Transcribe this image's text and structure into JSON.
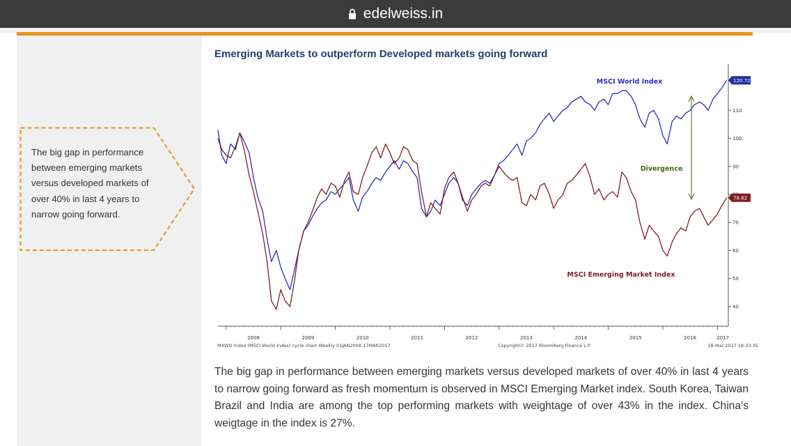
{
  "browser": {
    "url": "edelweiss.in"
  },
  "article": {
    "title": "Emerging Markets to outperform Developed markets going forward",
    "body": "The big gap in performance between emerging markets versus developed markets of over 40% in last 4 years to narrow going forward as fresh momentum is observed in MSCI Emerging Market index. South Korea, Taiwan Brazil and India are among the top performing markets with weightage of over 43% in the index. China’s weigtage in the index is 27%."
  },
  "callout": {
    "text": "The big gap in performance between emerging markets versus developed markets of over 40% in last 4 years to narrow going forward."
  },
  "colors": {
    "world": "#2b2fb8",
    "emerging": "#7c1f24",
    "divergence": "#3f6b12",
    "accent": "#e59518",
    "title": "#24406c"
  },
  "chart_data": {
    "type": "line",
    "title": "",
    "x_labels": [
      "2008",
      "2009",
      "2010",
      "2011",
      "2012",
      "2013",
      "2014",
      "2015",
      "2016",
      "2017"
    ],
    "y_ticks": [
      40,
      50,
      60,
      70,
      80,
      90,
      100,
      110
    ],
    "ylim": [
      33,
      125
    ],
    "xlim": [
      2007.85,
      2017.2
    ],
    "grid": false,
    "series": [
      {
        "name": "MSCI World Index",
        "last_value": "120.72",
        "points": [
          [
            2007.85,
            103
          ],
          [
            2007.92,
            94
          ],
          [
            2008.0,
            91
          ],
          [
            2008.08,
            98
          ],
          [
            2008.17,
            96
          ],
          [
            2008.25,
            102
          ],
          [
            2008.33,
            99
          ],
          [
            2008.42,
            95
          ],
          [
            2008.5,
            86
          ],
          [
            2008.58,
            79
          ],
          [
            2008.67,
            74
          ],
          [
            2008.75,
            64
          ],
          [
            2008.83,
            56
          ],
          [
            2008.92,
            60
          ],
          [
            2009.0,
            54
          ],
          [
            2009.08,
            50
          ],
          [
            2009.17,
            46
          ],
          [
            2009.25,
            53
          ],
          [
            2009.33,
            60
          ],
          [
            2009.42,
            67
          ],
          [
            2009.5,
            69
          ],
          [
            2009.58,
            72
          ],
          [
            2009.67,
            75
          ],
          [
            2009.75,
            77
          ],
          [
            2009.83,
            78
          ],
          [
            2009.92,
            81
          ],
          [
            2010.0,
            80
          ],
          [
            2010.08,
            82
          ],
          [
            2010.17,
            84
          ],
          [
            2010.25,
            86
          ],
          [
            2010.33,
            78
          ],
          [
            2010.42,
            74
          ],
          [
            2010.5,
            79
          ],
          [
            2010.58,
            81
          ],
          [
            2010.67,
            84
          ],
          [
            2010.75,
            86
          ],
          [
            2010.83,
            85
          ],
          [
            2010.92,
            88
          ],
          [
            2011.0,
            90
          ],
          [
            2011.08,
            92
          ],
          [
            2011.17,
            89
          ],
          [
            2011.25,
            92
          ],
          [
            2011.33,
            91
          ],
          [
            2011.42,
            88
          ],
          [
            2011.5,
            86
          ],
          [
            2011.58,
            75
          ],
          [
            2011.67,
            72
          ],
          [
            2011.75,
            74
          ],
          [
            2011.83,
            78
          ],
          [
            2011.92,
            76
          ],
          [
            2012.0,
            80
          ],
          [
            2012.08,
            84
          ],
          [
            2012.17,
            86
          ],
          [
            2012.25,
            84
          ],
          [
            2012.33,
            78
          ],
          [
            2012.42,
            76
          ],
          [
            2012.5,
            80
          ],
          [
            2012.58,
            82
          ],
          [
            2012.67,
            84
          ],
          [
            2012.75,
            85
          ],
          [
            2012.83,
            84
          ],
          [
            2012.92,
            87
          ],
          [
            2013.0,
            91
          ],
          [
            2013.08,
            92
          ],
          [
            2013.17,
            94
          ],
          [
            2013.25,
            96
          ],
          [
            2013.33,
            98
          ],
          [
            2013.42,
            94
          ],
          [
            2013.5,
            99
          ],
          [
            2013.58,
            100
          ],
          [
            2013.67,
            102
          ],
          [
            2013.75,
            105
          ],
          [
            2013.83,
            107
          ],
          [
            2013.92,
            109
          ],
          [
            2014.0,
            106
          ],
          [
            2014.08,
            108
          ],
          [
            2014.17,
            110
          ],
          [
            2014.25,
            111
          ],
          [
            2014.33,
            113
          ],
          [
            2014.42,
            114
          ],
          [
            2014.5,
            115
          ],
          [
            2014.58,
            113
          ],
          [
            2014.67,
            112
          ],
          [
            2014.75,
            110
          ],
          [
            2014.83,
            113
          ],
          [
            2014.92,
            114
          ],
          [
            2015.0,
            112
          ],
          [
            2015.08,
            116
          ],
          [
            2015.17,
            116
          ],
          [
            2015.25,
            117
          ],
          [
            2015.33,
            117
          ],
          [
            2015.42,
            115
          ],
          [
            2015.5,
            112
          ],
          [
            2015.58,
            107
          ],
          [
            2015.67,
            104
          ],
          [
            2015.75,
            109
          ],
          [
            2015.83,
            110
          ],
          [
            2015.92,
            107
          ],
          [
            2016.0,
            101
          ],
          [
            2016.08,
            98
          ],
          [
            2016.17,
            106
          ],
          [
            2016.25,
            108
          ],
          [
            2016.33,
            107
          ],
          [
            2016.42,
            109
          ],
          [
            2016.5,
            110
          ],
          [
            2016.58,
            112
          ],
          [
            2016.67,
            113
          ],
          [
            2016.75,
            112
          ],
          [
            2016.83,
            110
          ],
          [
            2016.92,
            114
          ],
          [
            2017.0,
            116
          ],
          [
            2017.08,
            118
          ],
          [
            2017.17,
            120.7
          ]
        ]
      },
      {
        "name": "MSCI Emerging Market Index",
        "last_value": "78.82",
        "points": [
          [
            2007.85,
            100
          ],
          [
            2007.92,
            96
          ],
          [
            2008.0,
            94
          ],
          [
            2008.08,
            93
          ],
          [
            2008.17,
            97
          ],
          [
            2008.25,
            102
          ],
          [
            2008.33,
            96
          ],
          [
            2008.42,
            87
          ],
          [
            2008.5,
            81
          ],
          [
            2008.58,
            74
          ],
          [
            2008.67,
            66
          ],
          [
            2008.75,
            56
          ],
          [
            2008.83,
            42
          ],
          [
            2008.92,
            39
          ],
          [
            2009.0,
            46
          ],
          [
            2009.08,
            42
          ],
          [
            2009.17,
            40
          ],
          [
            2009.25,
            49
          ],
          [
            2009.33,
            60
          ],
          [
            2009.42,
            67
          ],
          [
            2009.5,
            70
          ],
          [
            2009.58,
            74
          ],
          [
            2009.67,
            79
          ],
          [
            2009.75,
            82
          ],
          [
            2009.83,
            80
          ],
          [
            2009.92,
            84
          ],
          [
            2010.0,
            83
          ],
          [
            2010.08,
            79
          ],
          [
            2010.17,
            85
          ],
          [
            2010.25,
            88
          ],
          [
            2010.33,
            81
          ],
          [
            2010.42,
            80
          ],
          [
            2010.5,
            86
          ],
          [
            2010.58,
            90
          ],
          [
            2010.67,
            95
          ],
          [
            2010.75,
            97
          ],
          [
            2010.83,
            93
          ],
          [
            2010.92,
            98
          ],
          [
            2011.0,
            95
          ],
          [
            2011.08,
            91
          ],
          [
            2011.17,
            93
          ],
          [
            2011.25,
            97
          ],
          [
            2011.33,
            96
          ],
          [
            2011.42,
            92
          ],
          [
            2011.5,
            91
          ],
          [
            2011.58,
            81
          ],
          [
            2011.67,
            72
          ],
          [
            2011.75,
            77
          ],
          [
            2011.83,
            75
          ],
          [
            2011.92,
            73
          ],
          [
            2012.0,
            82
          ],
          [
            2012.08,
            86
          ],
          [
            2012.17,
            88
          ],
          [
            2012.25,
            84
          ],
          [
            2012.33,
            79
          ],
          [
            2012.42,
            74
          ],
          [
            2012.5,
            78
          ],
          [
            2012.58,
            80
          ],
          [
            2012.67,
            83
          ],
          [
            2012.75,
            84
          ],
          [
            2012.83,
            83
          ],
          [
            2012.92,
            87
          ],
          [
            2013.0,
            90
          ],
          [
            2013.08,
            88
          ],
          [
            2013.17,
            86
          ],
          [
            2013.25,
            85
          ],
          [
            2013.33,
            86
          ],
          [
            2013.42,
            77
          ],
          [
            2013.5,
            76
          ],
          [
            2013.58,
            80
          ],
          [
            2013.67,
            78
          ],
          [
            2013.75,
            83
          ],
          [
            2013.83,
            84
          ],
          [
            2013.92,
            80
          ],
          [
            2014.0,
            75
          ],
          [
            2014.08,
            78
          ],
          [
            2014.17,
            80
          ],
          [
            2014.25,
            84
          ],
          [
            2014.33,
            85
          ],
          [
            2014.42,
            87
          ],
          [
            2014.5,
            89
          ],
          [
            2014.58,
            91
          ],
          [
            2014.67,
            86
          ],
          [
            2014.75,
            80
          ],
          [
            2014.83,
            82
          ],
          [
            2014.92,
            78
          ],
          [
            2015.0,
            80
          ],
          [
            2015.08,
            81
          ],
          [
            2015.17,
            79
          ],
          [
            2015.25,
            88
          ],
          [
            2015.33,
            86
          ],
          [
            2015.42,
            81
          ],
          [
            2015.5,
            78
          ],
          [
            2015.58,
            70
          ],
          [
            2015.67,
            64
          ],
          [
            2015.75,
            69
          ],
          [
            2015.83,
            67
          ],
          [
            2015.92,
            65
          ],
          [
            2016.0,
            60
          ],
          [
            2016.08,
            58
          ],
          [
            2016.17,
            63
          ],
          [
            2016.25,
            66
          ],
          [
            2016.33,
            68
          ],
          [
            2016.42,
            67
          ],
          [
            2016.5,
            72
          ],
          [
            2016.58,
            74
          ],
          [
            2016.67,
            75
          ],
          [
            2016.75,
            72
          ],
          [
            2016.83,
            69
          ],
          [
            2016.92,
            71
          ],
          [
            2017.0,
            73
          ],
          [
            2017.08,
            76
          ],
          [
            2017.17,
            78.8
          ]
        ]
      }
    ],
    "annotations": {
      "world_label": "MSCI World Index",
      "emerging_label": "MSCI Emerging Market Index",
      "divergence": "Divergence"
    },
    "footer_left": "MXWO Index (MSCI World Index) cycle chart  Weekly 01JAN2008-17MAR2017",
    "footer_center": "Copyright© 2017 Bloomberg Finance L.P.",
    "footer_right": "18-Mar-2017 18:33:35"
  }
}
